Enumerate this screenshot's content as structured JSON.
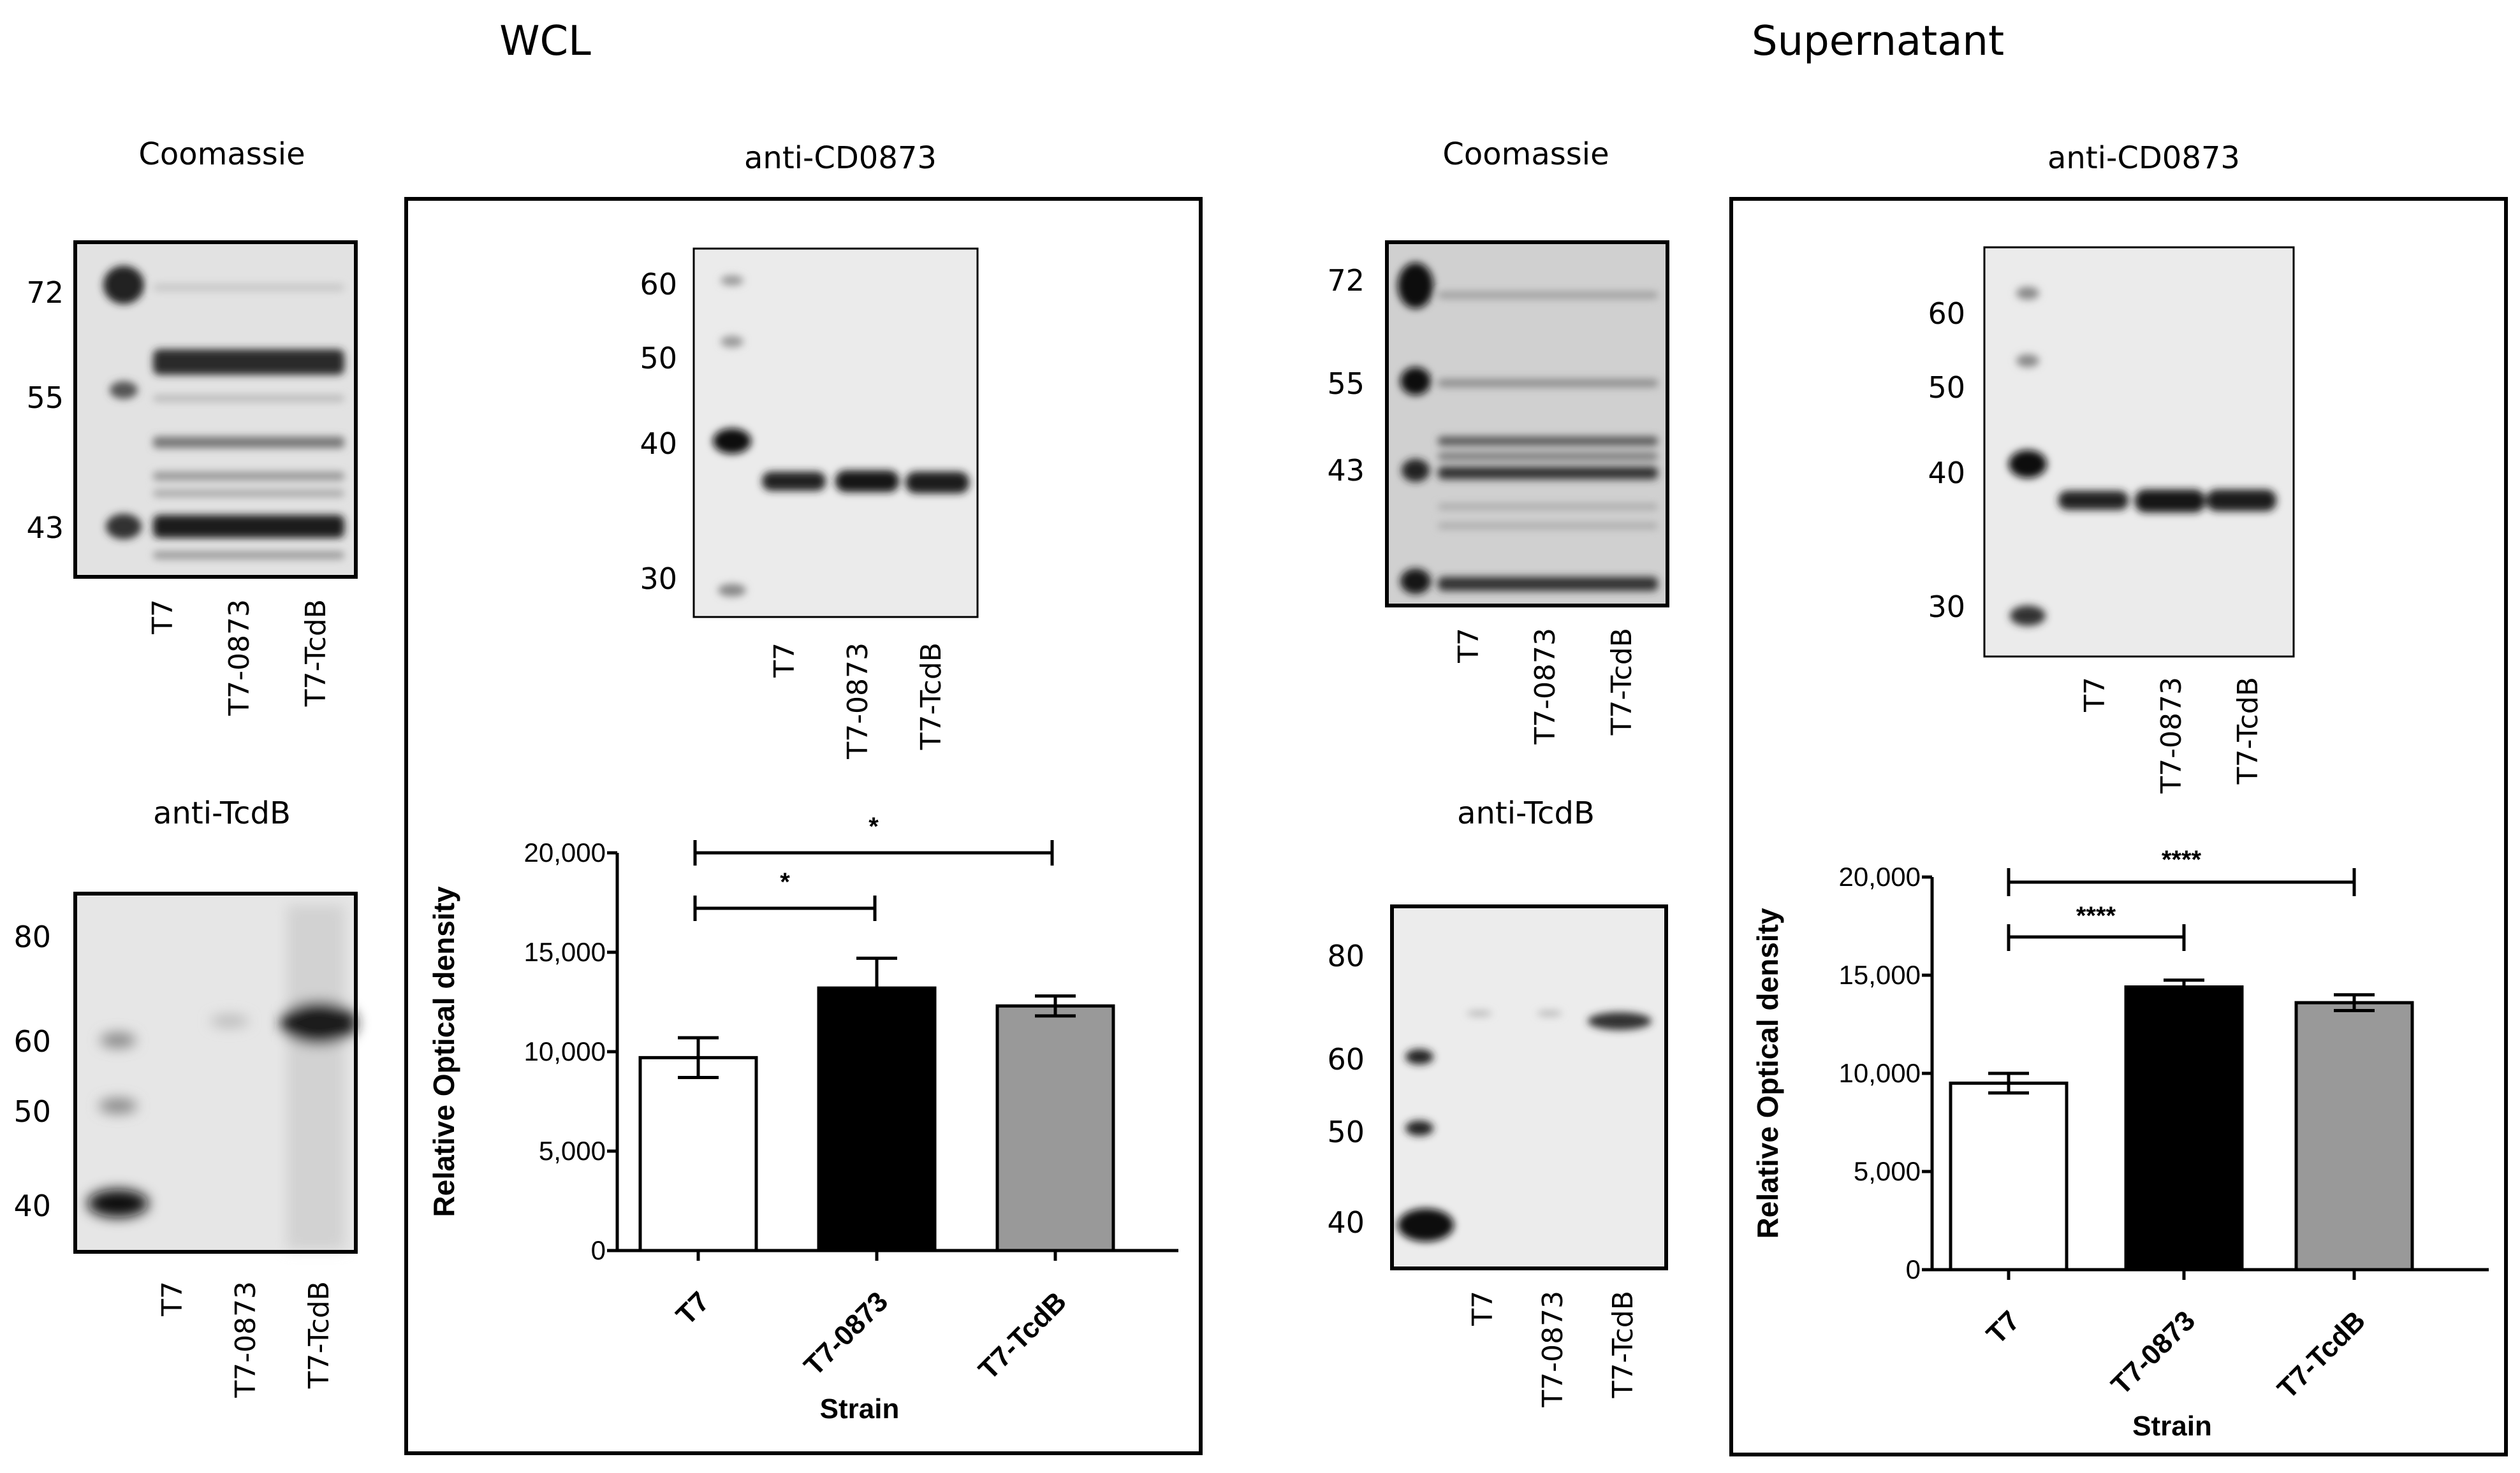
{
  "panels": {
    "wcl": {
      "header": "WCL",
      "coomassie": {
        "title": "Coomassie",
        "markers": [
          "72",
          "55",
          "43"
        ],
        "lanes": [
          "T7",
          "T7-0873",
          "T7-TcdB"
        ]
      },
      "anti_tcdb": {
        "title": "anti-TcdB",
        "markers": [
          "80",
          "60",
          "50",
          "40"
        ],
        "lanes": [
          "T7",
          "T7-0873",
          "T7-TcdB"
        ]
      },
      "anti_cd0873": {
        "title": "anti-CD0873",
        "markers": [
          "60",
          "50",
          "40",
          "30"
        ],
        "lanes": [
          "T7",
          "T7-0873",
          "T7-TcdB"
        ]
      },
      "significance": [
        "*",
        "*"
      ]
    },
    "sup": {
      "header": "Supernatant",
      "coomassie": {
        "title": "Coomassie",
        "markers": [
          "72",
          "55",
          "43"
        ],
        "lanes": [
          "T7",
          "T7-0873",
          "T7-TcdB"
        ]
      },
      "anti_tcdb": {
        "title": "anti-TcdB",
        "markers": [
          "80",
          "60",
          "50",
          "40"
        ],
        "lanes": [
          "T7",
          "T7-0873",
          "T7-TcdB"
        ]
      },
      "anti_cd0873": {
        "title": "anti-CD0873",
        "markers": [
          "60",
          "50",
          "40",
          "30"
        ],
        "lanes": [
          "T7",
          "T7-0873",
          "T7-TcdB"
        ]
      },
      "significance": [
        "****",
        "****"
      ]
    }
  },
  "chart_data": [
    {
      "type": "bar",
      "panel": "WCL",
      "categories": [
        "T7",
        "T7-0873",
        "T7-TcdB"
      ],
      "values": [
        9700,
        13200,
        12300
      ],
      "errors": [
        1000,
        1500,
        500
      ],
      "bar_colors": [
        "#ffffff",
        "#000000",
        "#999999"
      ],
      "xlabel": "Strain",
      "ylabel": "Relative Optical density",
      "ylim": [
        0,
        20000
      ],
      "yticks": [
        "0",
        "5,000",
        "10,000",
        "15,000",
        "20,000"
      ],
      "grid": false
    },
    {
      "type": "bar",
      "panel": "Supernatant",
      "categories": [
        "T7",
        "T7-0873",
        "T7-TcdB"
      ],
      "values": [
        9500,
        14400,
        13600
      ],
      "errors": [
        500,
        350,
        400
      ],
      "bar_colors": [
        "#ffffff",
        "#000000",
        "#999999"
      ],
      "xlabel": "Strain",
      "ylabel": "Relative Optical density",
      "ylim": [
        0,
        20000
      ],
      "yticks": [
        "0",
        "5,000",
        "10,000",
        "15,000",
        "20,000"
      ],
      "grid": false
    }
  ]
}
